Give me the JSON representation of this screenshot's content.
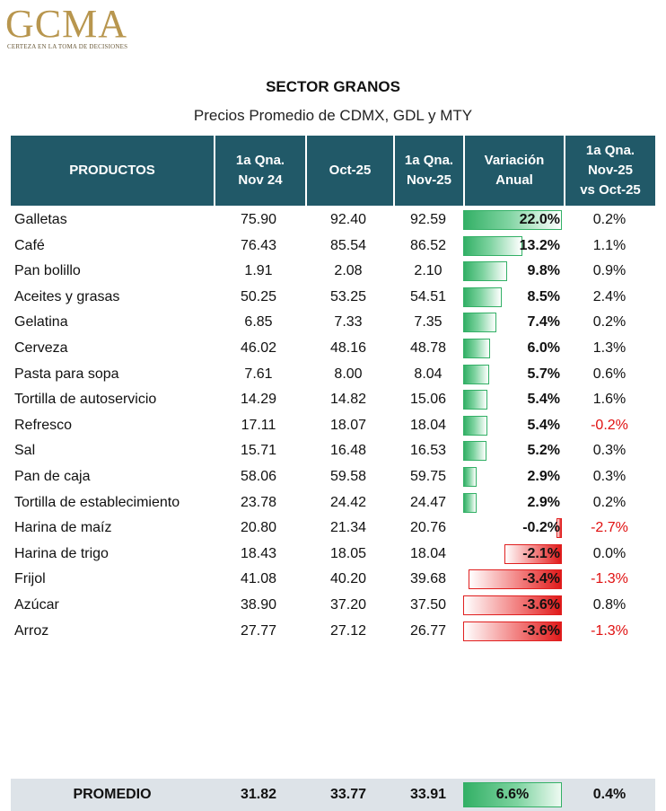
{
  "logo": {
    "text": "GCMA",
    "tagline": "CERTEZA EN LA TOMA DE DECISIONES"
  },
  "title": "SECTOR GRANOS",
  "subtitle": "Precios Promedio de CDMX, GDL y MTY",
  "colors": {
    "header_bg": "#215968",
    "positive": "#33b066",
    "negative": "#e01010",
    "footer_bg": "#dde3e8"
  },
  "chart_data": {
    "type": "table",
    "columns": [
      "PRODUCTOS",
      "1a Qna.\nNov 24",
      "Oct-25",
      "1a Qna.\nNov-25",
      "Variación\nAnual",
      "1a Qna.\nNov-25\nvs Oct-25"
    ],
    "rows": [
      {
        "product": "Galletas",
        "nov24": "75.90",
        "oct25": "92.40",
        "nov25": "92.59",
        "var": "22.0%",
        "var_value": 22.0,
        "vs": "0.2%"
      },
      {
        "product": "Café",
        "nov24": "76.43",
        "oct25": "85.54",
        "nov25": "86.52",
        "var": "13.2%",
        "var_value": 13.2,
        "vs": "1.1%"
      },
      {
        "product": "Pan bolillo",
        "nov24": "1.91",
        "oct25": "2.08",
        "nov25": "2.10",
        "var": "9.8%",
        "var_value": 9.8,
        "vs": "0.9%"
      },
      {
        "product": "Aceites y grasas",
        "nov24": "50.25",
        "oct25": "53.25",
        "nov25": "54.51",
        "var": "8.5%",
        "var_value": 8.5,
        "vs": "2.4%"
      },
      {
        "product": "Gelatina",
        "nov24": "6.85",
        "oct25": "7.33",
        "nov25": "7.35",
        "var": "7.4%",
        "var_value": 7.4,
        "vs": "0.2%"
      },
      {
        "product": "Cerveza",
        "nov24": "46.02",
        "oct25": "48.16",
        "nov25": "48.78",
        "var": "6.0%",
        "var_value": 6.0,
        "vs": "1.3%"
      },
      {
        "product": "Pasta para sopa",
        "nov24": "7.61",
        "oct25": "8.00",
        "nov25": "8.04",
        "var": "5.7%",
        "var_value": 5.7,
        "vs": "0.6%"
      },
      {
        "product": "Tortilla de autoservicio",
        "nov24": "14.29",
        "oct25": "14.82",
        "nov25": "15.06",
        "var": "5.4%",
        "var_value": 5.4,
        "vs": "1.6%"
      },
      {
        "product": "Refresco",
        "nov24": "17.11",
        "oct25": "18.07",
        "nov25": "18.04",
        "var": "5.4%",
        "var_value": 5.4,
        "vs": "-0.2%"
      },
      {
        "product": "Sal",
        "nov24": "15.71",
        "oct25": "16.48",
        "nov25": "16.53",
        "var": "5.2%",
        "var_value": 5.2,
        "vs": "0.3%"
      },
      {
        "product": "Pan de caja",
        "nov24": "58.06",
        "oct25": "59.58",
        "nov25": "59.75",
        "var": "2.9%",
        "var_value": 2.9,
        "vs": "0.3%"
      },
      {
        "product": "Tortilla de establecimiento",
        "nov24": "23.78",
        "oct25": "24.42",
        "nov25": "24.47",
        "var": "2.9%",
        "var_value": 2.9,
        "vs": "0.2%"
      },
      {
        "product": "Harina de maíz",
        "nov24": "20.80",
        "oct25": "21.34",
        "nov25": "20.76",
        "var": "-0.2%",
        "var_value": -0.2,
        "vs": "-2.7%"
      },
      {
        "product": "Harina de trigo",
        "nov24": "18.43",
        "oct25": "18.05",
        "nov25": "18.04",
        "var": "-2.1%",
        "var_value": -2.1,
        "vs": "0.0%"
      },
      {
        "product": "Frijol",
        "nov24": "41.08",
        "oct25": "40.20",
        "nov25": "39.68",
        "var": "-3.4%",
        "var_value": -3.4,
        "vs": "-1.3%"
      },
      {
        "product": "Azúcar",
        "nov24": "38.90",
        "oct25": "37.20",
        "nov25": "37.50",
        "var": "-3.6%",
        "var_value": -3.6,
        "vs": "0.8%"
      },
      {
        "product": "Arroz",
        "nov24": "27.77",
        "oct25": "27.12",
        "nov25": "26.77",
        "var": "-3.6%",
        "var_value": -3.6,
        "vs": "-1.3%"
      }
    ],
    "footer": {
      "label": "PROMEDIO",
      "nov24": "31.82",
      "oct25": "33.77",
      "nov25": "33.91",
      "var": "6.6%",
      "var_value": 6.6,
      "vs": "0.4%"
    }
  }
}
